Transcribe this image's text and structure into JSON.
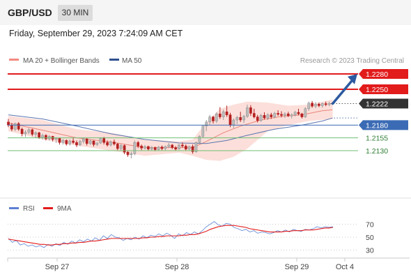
{
  "header": {
    "symbol": "GBP/USD",
    "timeframe": "30 MIN",
    "timestamp": "Friday, September 29, 2023 7:24:09 AM CET"
  },
  "legend": {
    "bb_label": "MA 20 + Bollinger Bands",
    "ma50_label": "MA 50",
    "credit": "Research © 2023 Trading Central",
    "rsi_label": "RSI",
    "ma9_label": "9MA"
  },
  "colors": {
    "resistance": "#e21b1b",
    "support": "#3b6bb5",
    "pivot": "#6fbf73",
    "current": "#333333",
    "bb_fill": "#fcd9d4",
    "ma20": "#e8857a",
    "ma50": "#5b76b0",
    "bull": "#bcbcbc",
    "bear": "#b52121",
    "rsi": "#6b8fd6",
    "rsi_ma": "#e21b1b",
    "arrow": "#2c5aa0"
  },
  "chart_data": [
    {
      "type": "candlestick",
      "ylim": [
        1.204,
        1.2295
      ],
      "levels": [
        {
          "value": 1.228,
          "label": "1.2280",
          "kind": "resistance"
        },
        {
          "value": 1.225,
          "label": "1.2250",
          "kind": "resistance"
        },
        {
          "value": 1.2222,
          "label": "1.2222",
          "kind": "current"
        },
        {
          "value": 1.218,
          "label": "1.2180",
          "kind": "support"
        },
        {
          "value": 1.2155,
          "label": "1.2155",
          "kind": "pivot"
        },
        {
          "value": 1.213,
          "label": "1.2130",
          "kind": "pivot"
        }
      ],
      "x_ticks": [
        "Sep 27",
        "Sep 28",
        "Sep 29",
        "Oct 4"
      ],
      "candles": [
        [
          1.2186,
          1.2192,
          1.2176,
          1.218
        ],
        [
          1.218,
          1.2184,
          1.2168,
          1.2172
        ],
        [
          1.2172,
          1.2185,
          1.2168,
          1.2183
        ],
        [
          1.2183,
          1.2186,
          1.2169,
          1.2172
        ],
        [
          1.2172,
          1.2175,
          1.2158,
          1.2163
        ],
        [
          1.2163,
          1.217,
          1.2157,
          1.2166
        ],
        [
          1.2166,
          1.2174,
          1.2162,
          1.2171
        ],
        [
          1.2171,
          1.2173,
          1.2158,
          1.2162
        ],
        [
          1.2162,
          1.2168,
          1.2155,
          1.2165
        ],
        [
          1.2165,
          1.2167,
          1.2153,
          1.2156
        ],
        [
          1.2156,
          1.2163,
          1.2152,
          1.216
        ],
        [
          1.216,
          1.2162,
          1.215,
          1.2153
        ],
        [
          1.2153,
          1.216,
          1.215,
          1.2158
        ],
        [
          1.2158,
          1.2159,
          1.2148,
          1.2152
        ],
        [
          1.2152,
          1.2156,
          1.2145,
          1.2154
        ],
        [
          1.2154,
          1.2155,
          1.2142,
          1.2146
        ],
        [
          1.2146,
          1.2153,
          1.2142,
          1.215
        ],
        [
          1.215,
          1.2152,
          1.214,
          1.2143
        ],
        [
          1.2143,
          1.2152,
          1.214,
          1.2149
        ],
        [
          1.2149,
          1.2155,
          1.2143,
          1.2146
        ],
        [
          1.2146,
          1.215,
          1.2137,
          1.2141
        ],
        [
          1.2141,
          1.2151,
          1.2139,
          1.2148
        ],
        [
          1.2148,
          1.2156,
          1.2144,
          1.2153
        ],
        [
          1.2153,
          1.2155,
          1.214,
          1.2144
        ],
        [
          1.2144,
          1.2152,
          1.2141,
          1.2149
        ],
        [
          1.2149,
          1.215,
          1.2138,
          1.2142
        ],
        [
          1.2142,
          1.2147,
          1.2139,
          1.2145
        ],
        [
          1.2145,
          1.2156,
          1.2143,
          1.2154
        ],
        [
          1.2154,
          1.2157,
          1.2142,
          1.2146
        ],
        [
          1.2146,
          1.215,
          1.2138,
          1.2141
        ],
        [
          1.2141,
          1.215,
          1.2138,
          1.2147
        ],
        [
          1.2147,
          1.2152,
          1.214,
          1.2143
        ],
        [
          1.2143,
          1.2145,
          1.2131,
          1.2134
        ],
        [
          1.2134,
          1.2143,
          1.213,
          1.214
        ],
        [
          1.214,
          1.2142,
          1.2123,
          1.2127
        ],
        [
          1.2127,
          1.213,
          1.2118,
          1.2122
        ],
        [
          1.2122,
          1.2128,
          1.2115,
          1.2124
        ],
        [
          1.2124,
          1.215,
          1.2121,
          1.2146
        ],
        [
          1.2146,
          1.2149,
          1.2135,
          1.2139
        ],
        [
          1.2139,
          1.2142,
          1.2131,
          1.2135
        ],
        [
          1.2135,
          1.2141,
          1.2132,
          1.2138
        ],
        [
          1.2138,
          1.214,
          1.213,
          1.2133
        ],
        [
          1.2133,
          1.2139,
          1.213,
          1.2136
        ],
        [
          1.2136,
          1.2138,
          1.2129,
          1.2132
        ],
        [
          1.2132,
          1.2139,
          1.213,
          1.2137
        ],
        [
          1.2137,
          1.214,
          1.2131,
          1.2134
        ],
        [
          1.2134,
          1.214,
          1.2131,
          1.2138
        ],
        [
          1.2138,
          1.2145,
          1.2135,
          1.2141
        ],
        [
          1.2141,
          1.2143,
          1.2133,
          1.2136
        ],
        [
          1.2136,
          1.2139,
          1.213,
          1.2133
        ],
        [
          1.2133,
          1.2143,
          1.2132,
          1.2141
        ],
        [
          1.2141,
          1.2146,
          1.2136,
          1.2139
        ],
        [
          1.2139,
          1.2142,
          1.213,
          1.2133
        ],
        [
          1.2133,
          1.214,
          1.2131,
          1.2138
        ],
        [
          1.2138,
          1.2142,
          1.2124,
          1.2128
        ],
        [
          1.2128,
          1.2148,
          1.2126,
          1.2146
        ],
        [
          1.2146,
          1.216,
          1.2143,
          1.2158
        ],
        [
          1.2158,
          1.218,
          1.2155,
          1.2178
        ],
        [
          1.2178,
          1.219,
          1.2168,
          1.2186
        ],
        [
          1.2186,
          1.22,
          1.218,
          1.2196
        ],
        [
          1.2196,
          1.2198,
          1.2183,
          1.2188
        ],
        [
          1.2188,
          1.2205,
          1.2184,
          1.2202
        ],
        [
          1.2202,
          1.2215,
          1.2192,
          1.2196
        ],
        [
          1.2196,
          1.221,
          1.219,
          1.2206
        ],
        [
          1.2206,
          1.2218,
          1.2196,
          1.22
        ],
        [
          1.22,
          1.2204,
          1.2176,
          1.218
        ],
        [
          1.218,
          1.2193,
          1.2174,
          1.219
        ],
        [
          1.219,
          1.2198,
          1.2182,
          1.2195
        ],
        [
          1.2195,
          1.2206,
          1.2186,
          1.219
        ],
        [
          1.219,
          1.22,
          1.2184,
          1.2197
        ],
        [
          1.2197,
          1.222,
          1.2194,
          1.2214
        ],
        [
          1.2214,
          1.2219,
          1.2198,
          1.2203
        ],
        [
          1.2203,
          1.2212,
          1.2193,
          1.2196
        ],
        [
          1.2196,
          1.22,
          1.2185,
          1.2189
        ],
        [
          1.2189,
          1.2202,
          1.2186,
          1.2199
        ],
        [
          1.2199,
          1.2205,
          1.2191,
          1.2194
        ],
        [
          1.2194,
          1.2203,
          1.219,
          1.22
        ],
        [
          1.22,
          1.2204,
          1.2192,
          1.2196
        ],
        [
          1.2196,
          1.2206,
          1.2193,
          1.2203
        ],
        [
          1.2203,
          1.2209,
          1.2198,
          1.2201
        ],
        [
          1.2201,
          1.2207,
          1.2195,
          1.2199
        ],
        [
          1.2199,
          1.2205,
          1.2194,
          1.2202
        ],
        [
          1.2202,
          1.2206,
          1.2196,
          1.2198
        ],
        [
          1.2198,
          1.2203,
          1.2193,
          1.22
        ],
        [
          1.22,
          1.2208,
          1.2197,
          1.2205
        ],
        [
          1.2205,
          1.2212,
          1.2199,
          1.2202
        ],
        [
          1.2202,
          1.2204,
          1.2193,
          1.2196
        ],
        [
          1.2196,
          1.2215,
          1.2194,
          1.2212
        ],
        [
          1.2212,
          1.2226,
          1.2208,
          1.2223
        ],
        [
          1.2223,
          1.2227,
          1.2214,
          1.2217
        ],
        [
          1.2217,
          1.2225,
          1.2213,
          1.2221
        ],
        [
          1.2221,
          1.2224,
          1.2215,
          1.2218
        ],
        [
          1.2218,
          1.2224,
          1.2214,
          1.2222
        ],
        [
          1.2222,
          1.2226,
          1.2217,
          1.222
        ],
        [
          1.222,
          1.2226,
          1.2217,
          1.2222
        ]
      ],
      "ma20": [
        [
          0,
          1.2184
        ],
        [
          10,
          1.217
        ],
        [
          20,
          1.2155
        ],
        [
          30,
          1.2147
        ],
        [
          40,
          1.2136
        ],
        [
          50,
          1.2136
        ],
        [
          54,
          1.2136
        ],
        [
          58,
          1.2148
        ],
        [
          63,
          1.2165
        ],
        [
          68,
          1.2178
        ],
        [
          74,
          1.219
        ],
        [
          80,
          1.2197
        ],
        [
          86,
          1.22
        ],
        [
          92,
          1.2208
        ],
        [
          95,
          1.221
        ]
      ],
      "bb_upper": [
        [
          0,
          1.2198
        ],
        [
          10,
          1.219
        ],
        [
          20,
          1.2172
        ],
        [
          30,
          1.2165
        ],
        [
          40,
          1.2152
        ],
        [
          50,
          1.2148
        ],
        [
          54,
          1.2152
        ],
        [
          58,
          1.2185
        ],
        [
          62,
          1.2212
        ],
        [
          66,
          1.222
        ],
        [
          70,
          1.2226
        ],
        [
          76,
          1.2224
        ],
        [
          82,
          1.2218
        ],
        [
          88,
          1.222
        ],
        [
          95,
          1.223
        ]
      ],
      "bb_lower": [
        [
          0,
          1.2168
        ],
        [
          10,
          1.2152
        ],
        [
          20,
          1.214
        ],
        [
          30,
          1.213
        ],
        [
          40,
          1.212
        ],
        [
          50,
          1.2126
        ],
        [
          54,
          1.212
        ],
        [
          58,
          1.2112
        ],
        [
          62,
          1.211
        ],
        [
          66,
          1.2118
        ],
        [
          70,
          1.2134
        ],
        [
          76,
          1.2168
        ],
        [
          82,
          1.218
        ],
        [
          88,
          1.2188
        ],
        [
          95,
          1.2192
        ]
      ],
      "ma50": [
        [
          0,
          1.22
        ],
        [
          10,
          1.2192
        ],
        [
          20,
          1.2178
        ],
        [
          30,
          1.2163
        ],
        [
          40,
          1.2152
        ],
        [
          50,
          1.2145
        ],
        [
          58,
          1.2144
        ],
        [
          64,
          1.215
        ],
        [
          70,
          1.216
        ],
        [
          78,
          1.2172
        ],
        [
          86,
          1.218
        ],
        [
          92,
          1.2188
        ],
        [
          95,
          1.2194
        ]
      ]
    },
    {
      "type": "line",
      "title": "RSI",
      "ylim": [
        20,
        80
      ],
      "y_ticks": [
        70,
        50,
        30
      ],
      "series": [
        {
          "name": "RSI",
          "values": [
            48,
            42,
            45,
            38,
            40,
            36,
            38,
            35,
            37,
            34,
            39,
            36,
            40,
            37,
            42,
            39,
            44,
            41,
            46,
            43,
            47,
            44,
            49,
            45,
            52,
            48,
            54,
            50,
            49,
            45,
            48,
            46,
            50,
            47,
            52,
            49,
            53,
            51,
            55,
            52,
            56,
            53,
            48,
            55,
            52,
            57,
            54,
            58,
            55,
            60,
            66,
            70,
            74,
            69,
            67,
            71,
            70,
            65,
            63,
            60,
            62,
            58,
            60,
            56,
            58,
            57,
            55,
            57,
            60,
            58,
            61,
            58,
            62,
            60,
            59,
            62,
            61,
            63,
            66,
            64,
            66,
            65,
            66
          ]
        },
        {
          "name": "9MA",
          "values": [
            47,
            46,
            45,
            44,
            43,
            42,
            41,
            40,
            39,
            39,
            38,
            38,
            39,
            39,
            40,
            40,
            41,
            41,
            42,
            42,
            43,
            44,
            44,
            45,
            46,
            47,
            48,
            48,
            48,
            48,
            48,
            48,
            48,
            48,
            49,
            49,
            50,
            50,
            51,
            51,
            52,
            52,
            52,
            52,
            53,
            53,
            54,
            54,
            55,
            57,
            59,
            62,
            64,
            66,
            67,
            68,
            68,
            68,
            67,
            66,
            65,
            63,
            62,
            61,
            60,
            59,
            58,
            58,
            58,
            58,
            59,
            59,
            60,
            60,
            60,
            61,
            61,
            61,
            62,
            63,
            64,
            64,
            65
          ]
        }
      ]
    }
  ]
}
